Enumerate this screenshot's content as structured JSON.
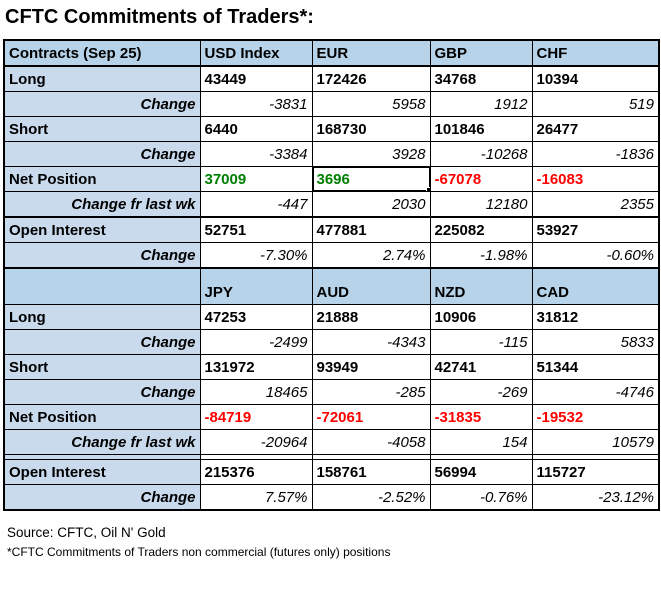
{
  "title": "CFTC Commitments of Traders*:",
  "colors": {
    "header_bg": "#b7d3e9",
    "label_bg": "#c9daed",
    "positive_net": "#008000",
    "negative_net": "#ff0000",
    "grid": "#000000"
  },
  "selection": {
    "section": "first",
    "column": "EUR",
    "row": "Net Position",
    "value": "3696"
  },
  "sections": [
    {
      "corner": "Contracts (Sep 25)",
      "columns": [
        "USD Index",
        "EUR",
        "GBP",
        "CHF"
      ],
      "rows": [
        {
          "label": "Long",
          "values": [
            "43449",
            "172426",
            "34768",
            "10394"
          ]
        },
        {
          "label": "Change",
          "values": [
            "-3831",
            "5958",
            "1912",
            "519"
          ]
        },
        {
          "label": "Short",
          "values": [
            "6440",
            "168730",
            "101846",
            "26477"
          ]
        },
        {
          "label": "Change",
          "values": [
            "-3384",
            "3928",
            "-10268",
            "-1836"
          ]
        },
        {
          "label": "Net Position",
          "values": [
            "37009",
            "3696",
            "-67078",
            "-16083"
          ]
        },
        {
          "label": "Change fr last wk",
          "values": [
            "-447",
            "2030",
            "12180",
            "2355"
          ]
        },
        {
          "label": "Open Interest",
          "values": [
            "52751",
            "477881",
            "225082",
            "53927"
          ]
        },
        {
          "label": "Change",
          "values": [
            "-7.30%",
            "2.74%",
            "-1.98%",
            "-0.60%"
          ]
        }
      ]
    },
    {
      "corner": "",
      "columns": [
        "JPY",
        "AUD",
        "NZD",
        "CAD"
      ],
      "rows": [
        {
          "label": "Long",
          "values": [
            "47253",
            "21888",
            "10906",
            "31812"
          ]
        },
        {
          "label": "Change",
          "values": [
            "-2499",
            "-4343",
            "-115",
            "5833"
          ]
        },
        {
          "label": "Short",
          "values": [
            "131972",
            "93949",
            "42741",
            "51344"
          ]
        },
        {
          "label": "Change",
          "values": [
            "18465",
            "-285",
            "-269",
            "-4746"
          ]
        },
        {
          "label": "Net Position",
          "values": [
            "-84719",
            "-72061",
            "-31835",
            "-19532"
          ]
        },
        {
          "label": "Change fr last wk",
          "values": [
            "-20964",
            "-4058",
            "154",
            "10579"
          ]
        },
        {
          "label": "Open Interest",
          "values": [
            "215376",
            "158761",
            "56994",
            "115727"
          ]
        },
        {
          "label": "Change",
          "values": [
            "7.57%",
            "-2.52%",
            "-0.76%",
            "-23.12%"
          ]
        }
      ]
    }
  ],
  "footer": {
    "source": "Source: CFTC, Oil N' Gold",
    "note": "*CFTC Commitments of Traders non commercial (futures only) positions"
  }
}
